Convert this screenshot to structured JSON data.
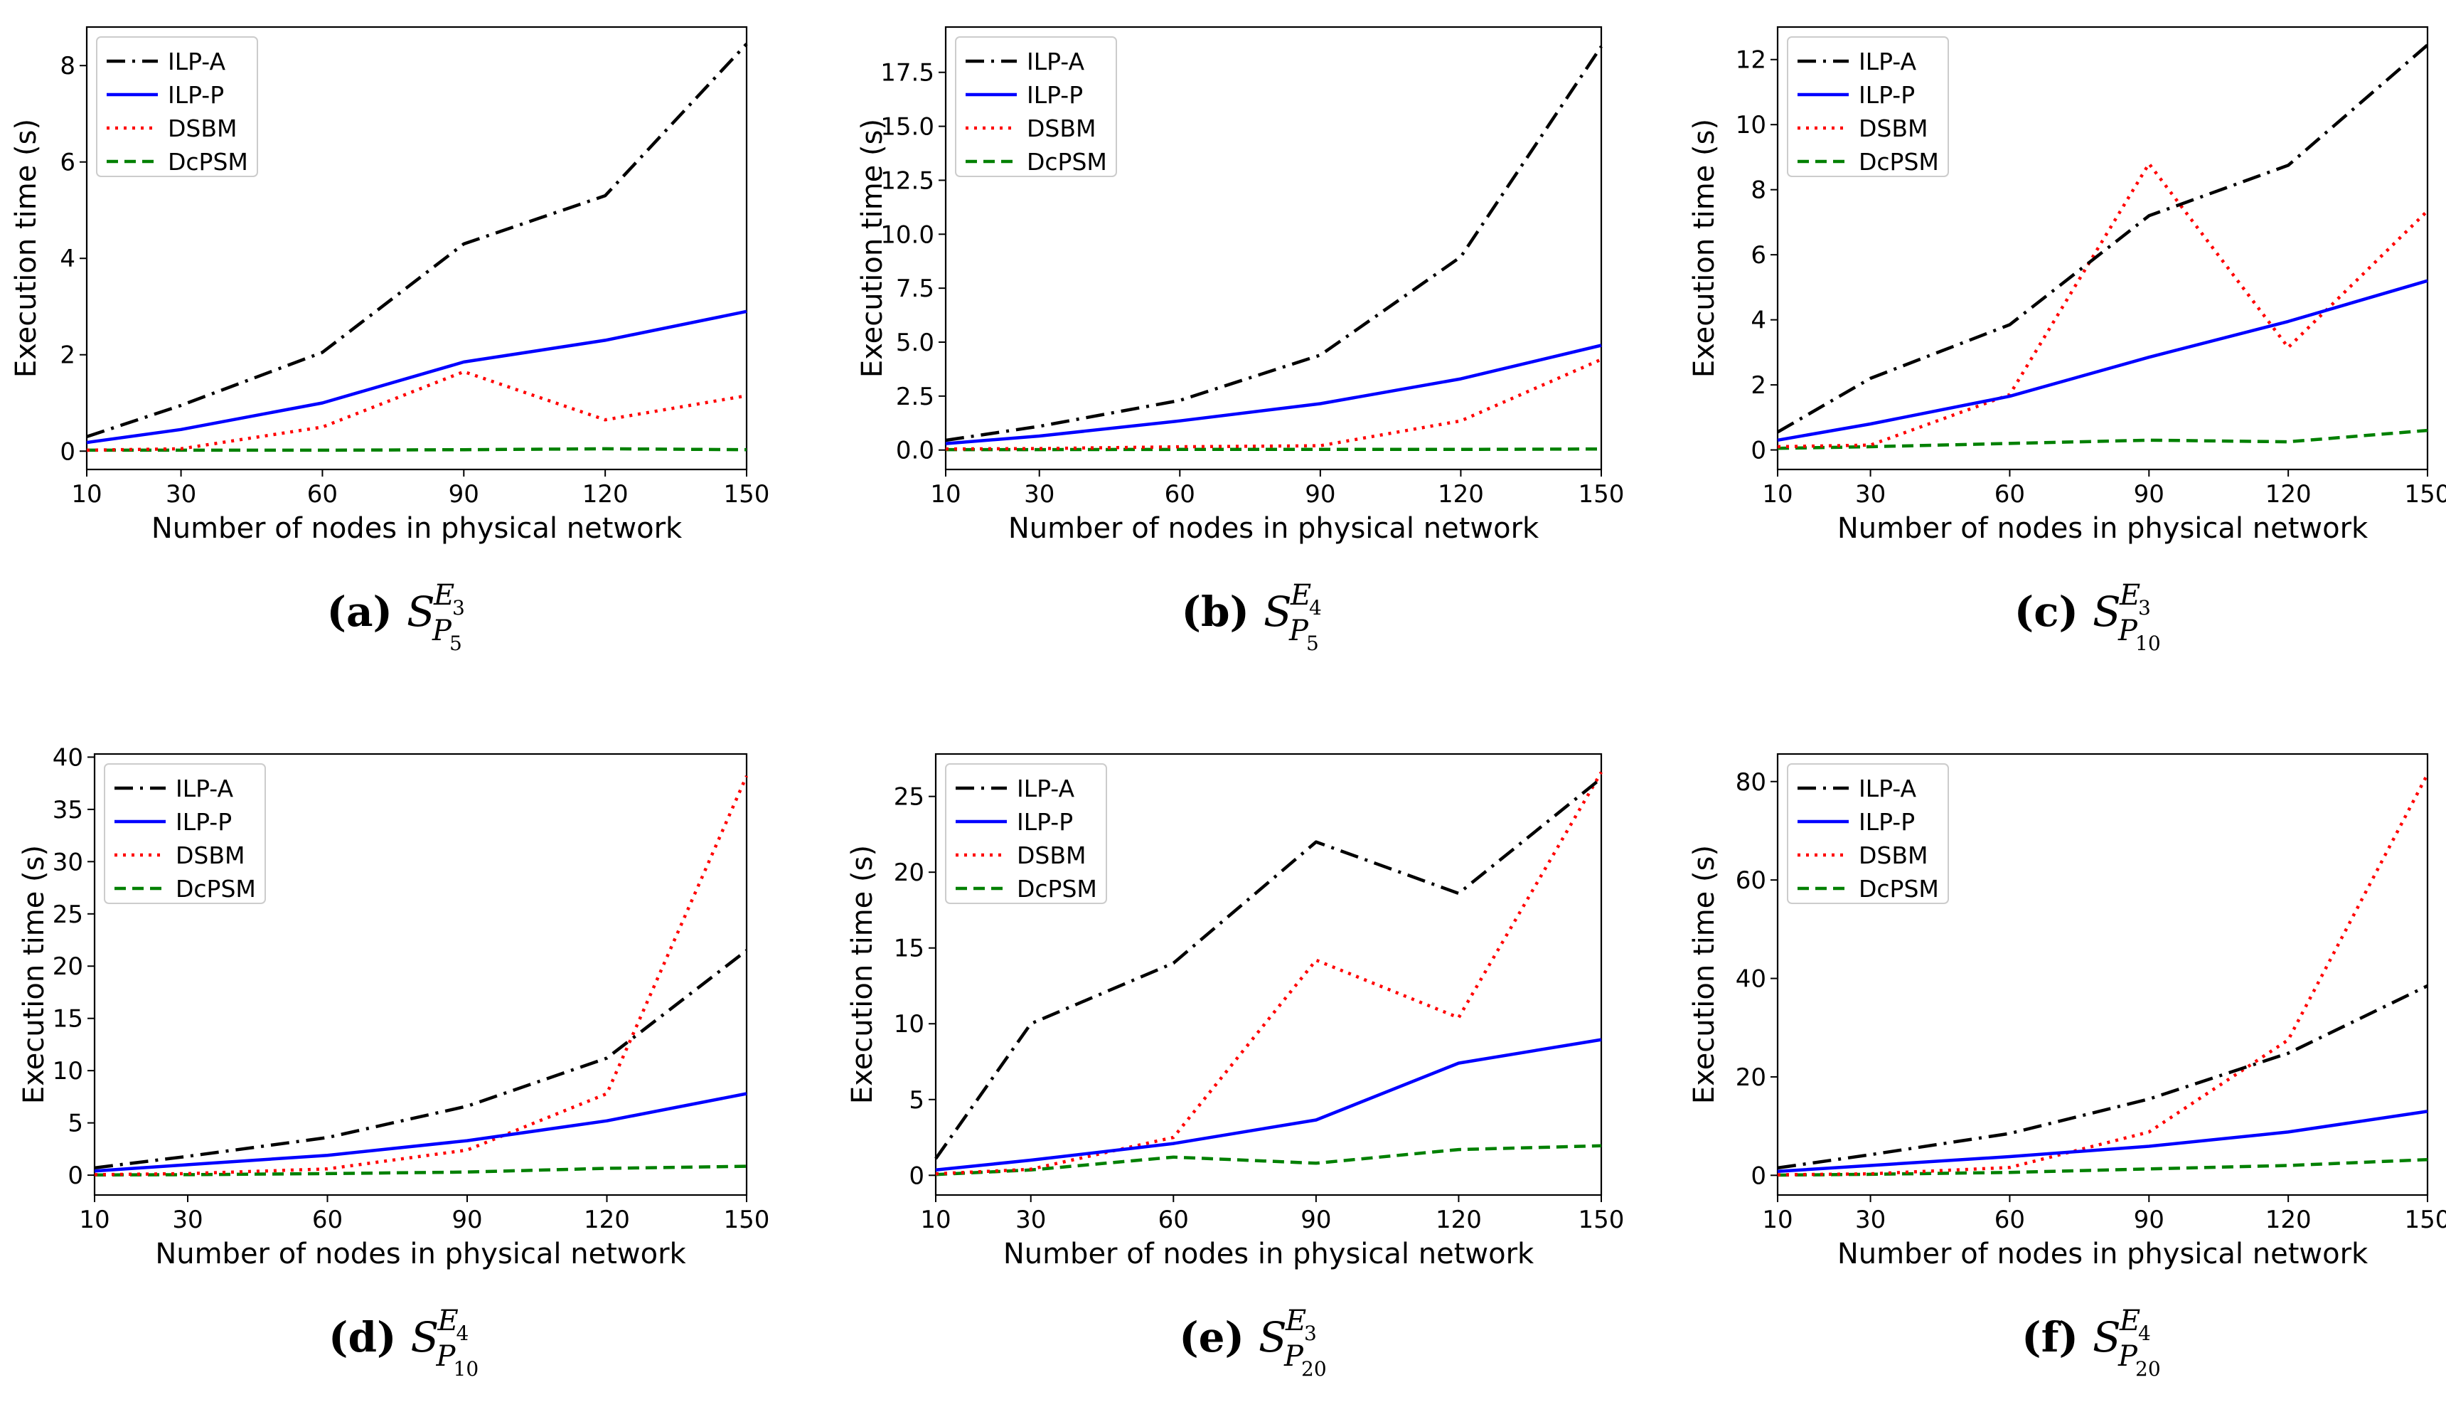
{
  "figure": {
    "xlabel": "Number of nodes in physical network",
    "ylabel": "Execution time (s)",
    "legend_labels": [
      "ILP-A",
      "ILP-P",
      "DSBM",
      "DcPSM"
    ],
    "colors": {
      "ILP-A": "#000000",
      "ILP-P": "#0000ff",
      "DSBM": "#ff0000",
      "DcPSM": "#008000"
    }
  },
  "chart_data": [
    {
      "type": "line",
      "panel": "(a)",
      "caption": {
        "label": "(a)",
        "base": "S",
        "sup": "E",
        "sup_sub": "3",
        "sub": "P",
        "sub_sub": "5"
      },
      "xlabel": "Number of nodes in physical network",
      "ylabel": "Execution time (s)",
      "x": [
        10,
        30,
        60,
        90,
        120,
        150
      ],
      "xticks": [
        "10",
        "30",
        "60",
        "90",
        "120",
        "150"
      ],
      "xlim": [
        10,
        150
      ],
      "ylim": [
        -0.38,
        8.8
      ],
      "yticks": [
        0,
        2,
        4,
        6,
        8
      ],
      "yticklabels": [
        "0",
        "2",
        "4",
        "6",
        "8"
      ],
      "legend": "top-left",
      "series": [
        {
          "name": "ILP-A",
          "values": [
            0.3,
            0.95,
            2.05,
            4.3,
            5.3,
            8.45
          ]
        },
        {
          "name": "ILP-P",
          "values": [
            0.18,
            0.45,
            1.0,
            1.85,
            2.3,
            2.9
          ]
        },
        {
          "name": "DSBM",
          "values": [
            0.02,
            0.05,
            0.5,
            1.65,
            0.65,
            1.15
          ]
        },
        {
          "name": "DcPSM",
          "values": [
            0.02,
            0.02,
            0.02,
            0.03,
            0.05,
            0.03
          ]
        }
      ]
    },
    {
      "type": "line",
      "panel": "(b)",
      "caption": {
        "label": "(b)",
        "base": "S",
        "sup": "E",
        "sup_sub": "4",
        "sub": "P",
        "sub_sub": "5"
      },
      "xlabel": "Number of nodes in physical network",
      "ylabel": "Execution time (s)",
      "x": [
        10,
        30,
        60,
        90,
        120,
        150
      ],
      "xticks": [
        "10",
        "30",
        "60",
        "90",
        "120",
        "150"
      ],
      "xlim": [
        10,
        150
      ],
      "ylim": [
        -0.9,
        19.6
      ],
      "yticks": [
        0,
        2.5,
        5,
        7.5,
        10,
        12.5,
        15,
        17.5
      ],
      "yticklabels": [
        "0.0",
        "2.5",
        "5.0",
        "7.5",
        "10.0",
        "12.5",
        "15.0",
        "17.5"
      ],
      "legend": "top-left",
      "series": [
        {
          "name": "ILP-A",
          "values": [
            0.45,
            1.1,
            2.3,
            4.4,
            8.95,
            18.7
          ]
        },
        {
          "name": "ILP-P",
          "values": [
            0.3,
            0.65,
            1.35,
            2.15,
            3.3,
            4.85
          ]
        },
        {
          "name": "DSBM",
          "values": [
            0.05,
            0.07,
            0.15,
            0.2,
            1.35,
            4.2
          ]
        },
        {
          "name": "DcPSM",
          "values": [
            0.02,
            0.02,
            0.03,
            0.03,
            0.03,
            0.05
          ]
        }
      ]
    },
    {
      "type": "line",
      "panel": "(c)",
      "caption": {
        "label": "(c)",
        "base": "S",
        "sup": "E",
        "sup_sub": "3",
        "sub": "P",
        "sub_sub": "10"
      },
      "xlabel": "Number of nodes in physical network",
      "ylabel": "Execution time (s)",
      "x": [
        10,
        30,
        60,
        90,
        120,
        150
      ],
      "xticks": [
        "10",
        "30",
        "60",
        "90",
        "120",
        "150"
      ],
      "xlim": [
        10,
        150
      ],
      "ylim": [
        -0.6,
        13.0
      ],
      "yticks": [
        0,
        2,
        4,
        6,
        8,
        10,
        12
      ],
      "yticklabels": [
        "0",
        "2",
        "4",
        "6",
        "8",
        "10",
        "12"
      ],
      "legend": "top-left",
      "series": [
        {
          "name": "ILP-A",
          "values": [
            0.55,
            2.2,
            3.85,
            7.2,
            8.75,
            12.45
          ]
        },
        {
          "name": "ILP-P",
          "values": [
            0.3,
            0.8,
            1.65,
            2.85,
            3.95,
            5.2
          ]
        },
        {
          "name": "DSBM",
          "values": [
            0.1,
            0.15,
            1.7,
            8.8,
            3.15,
            7.35
          ]
        },
        {
          "name": "DcPSM",
          "values": [
            0.05,
            0.1,
            0.2,
            0.3,
            0.25,
            0.6
          ]
        }
      ]
    },
    {
      "type": "line",
      "panel": "(d)",
      "caption": {
        "label": "(d)",
        "base": "S",
        "sup": "E",
        "sup_sub": "4",
        "sub": "P",
        "sub_sub": "10"
      },
      "xlabel": "Number of nodes in physical network",
      "ylabel": "Execution time (s)",
      "x": [
        10,
        30,
        60,
        90,
        120,
        150
      ],
      "xticks": [
        "10",
        "30",
        "60",
        "90",
        "120",
        "150"
      ],
      "xlim": [
        10,
        150
      ],
      "ylim": [
        -1.9,
        40.3
      ],
      "yticks": [
        0,
        5,
        10,
        15,
        20,
        25,
        30,
        35,
        40
      ],
      "yticklabels": [
        "0",
        "5",
        "10",
        "15",
        "20",
        "25",
        "30",
        "35",
        "40"
      ],
      "legend": "top-left",
      "series": [
        {
          "name": "ILP-A",
          "values": [
            0.7,
            1.8,
            3.6,
            6.6,
            11.2,
            21.5
          ]
        },
        {
          "name": "ILP-P",
          "values": [
            0.4,
            1.0,
            1.9,
            3.3,
            5.2,
            7.8
          ]
        },
        {
          "name": "DSBM",
          "values": [
            0.05,
            0.15,
            0.6,
            2.4,
            7.8,
            38.2
          ]
        },
        {
          "name": "DcPSM",
          "values": [
            0.02,
            0.05,
            0.15,
            0.3,
            0.65,
            0.85
          ]
        }
      ]
    },
    {
      "type": "line",
      "panel": "(e)",
      "caption": {
        "label": "(e)",
        "base": "S",
        "sup": "E",
        "sup_sub": "3",
        "sub": "P",
        "sub_sub": "20"
      },
      "xlabel": "Number of nodes in physical network",
      "ylabel": "Execution time (s)",
      "x": [
        10,
        30,
        60,
        90,
        120,
        150
      ],
      "xticks": [
        "10",
        "30",
        "60",
        "90",
        "120",
        "150"
      ],
      "xlim": [
        10,
        150
      ],
      "ylim": [
        -1.3,
        27.8
      ],
      "yticks": [
        0,
        5,
        10,
        15,
        20,
        25
      ],
      "yticklabels": [
        "0",
        "5",
        "10",
        "15",
        "20",
        "25"
      ],
      "legend": "top-left",
      "series": [
        {
          "name": "ILP-A",
          "values": [
            1.1,
            10.0,
            14.0,
            22.0,
            18.6,
            26.2
          ]
        },
        {
          "name": "ILP-P",
          "values": [
            0.35,
            1.0,
            2.1,
            3.65,
            7.4,
            8.95
          ]
        },
        {
          "name": "DSBM",
          "values": [
            0.1,
            0.4,
            2.5,
            14.2,
            10.4,
            26.6
          ]
        },
        {
          "name": "DcPSM",
          "values": [
            0.05,
            0.35,
            1.2,
            0.8,
            1.7,
            1.95
          ]
        }
      ]
    },
    {
      "type": "line",
      "panel": "(f)",
      "caption": {
        "label": "(f)",
        "base": "S",
        "sup": "E",
        "sup_sub": "4",
        "sub": "P",
        "sub_sub": "20"
      },
      "xlabel": "Number of nodes in physical network",
      "ylabel": "Execution time (s)",
      "x": [
        10,
        30,
        60,
        90,
        120,
        150
      ],
      "xticks": [
        "10",
        "30",
        "60",
        "90",
        "120",
        "150"
      ],
      "xlim": [
        10,
        150
      ],
      "ylim": [
        -4.0,
        85.6
      ],
      "yticks": [
        0,
        20,
        40,
        60,
        80
      ],
      "yticklabels": [
        "0",
        "20",
        "40",
        "60",
        "80"
      ],
      "legend": "top-left",
      "series": [
        {
          "name": "ILP-A",
          "values": [
            1.5,
            4.2,
            8.5,
            15.5,
            24.8,
            38.5
          ]
        },
        {
          "name": "ILP-P",
          "values": [
            0.8,
            2.0,
            3.8,
            5.9,
            8.8,
            13.0
          ]
        },
        {
          "name": "DSBM",
          "values": [
            0.1,
            0.3,
            1.6,
            8.8,
            27.5,
            81.5
          ]
        },
        {
          "name": "DcPSM",
          "values": [
            0.05,
            0.2,
            0.6,
            1.3,
            2.0,
            3.2
          ]
        }
      ]
    }
  ]
}
